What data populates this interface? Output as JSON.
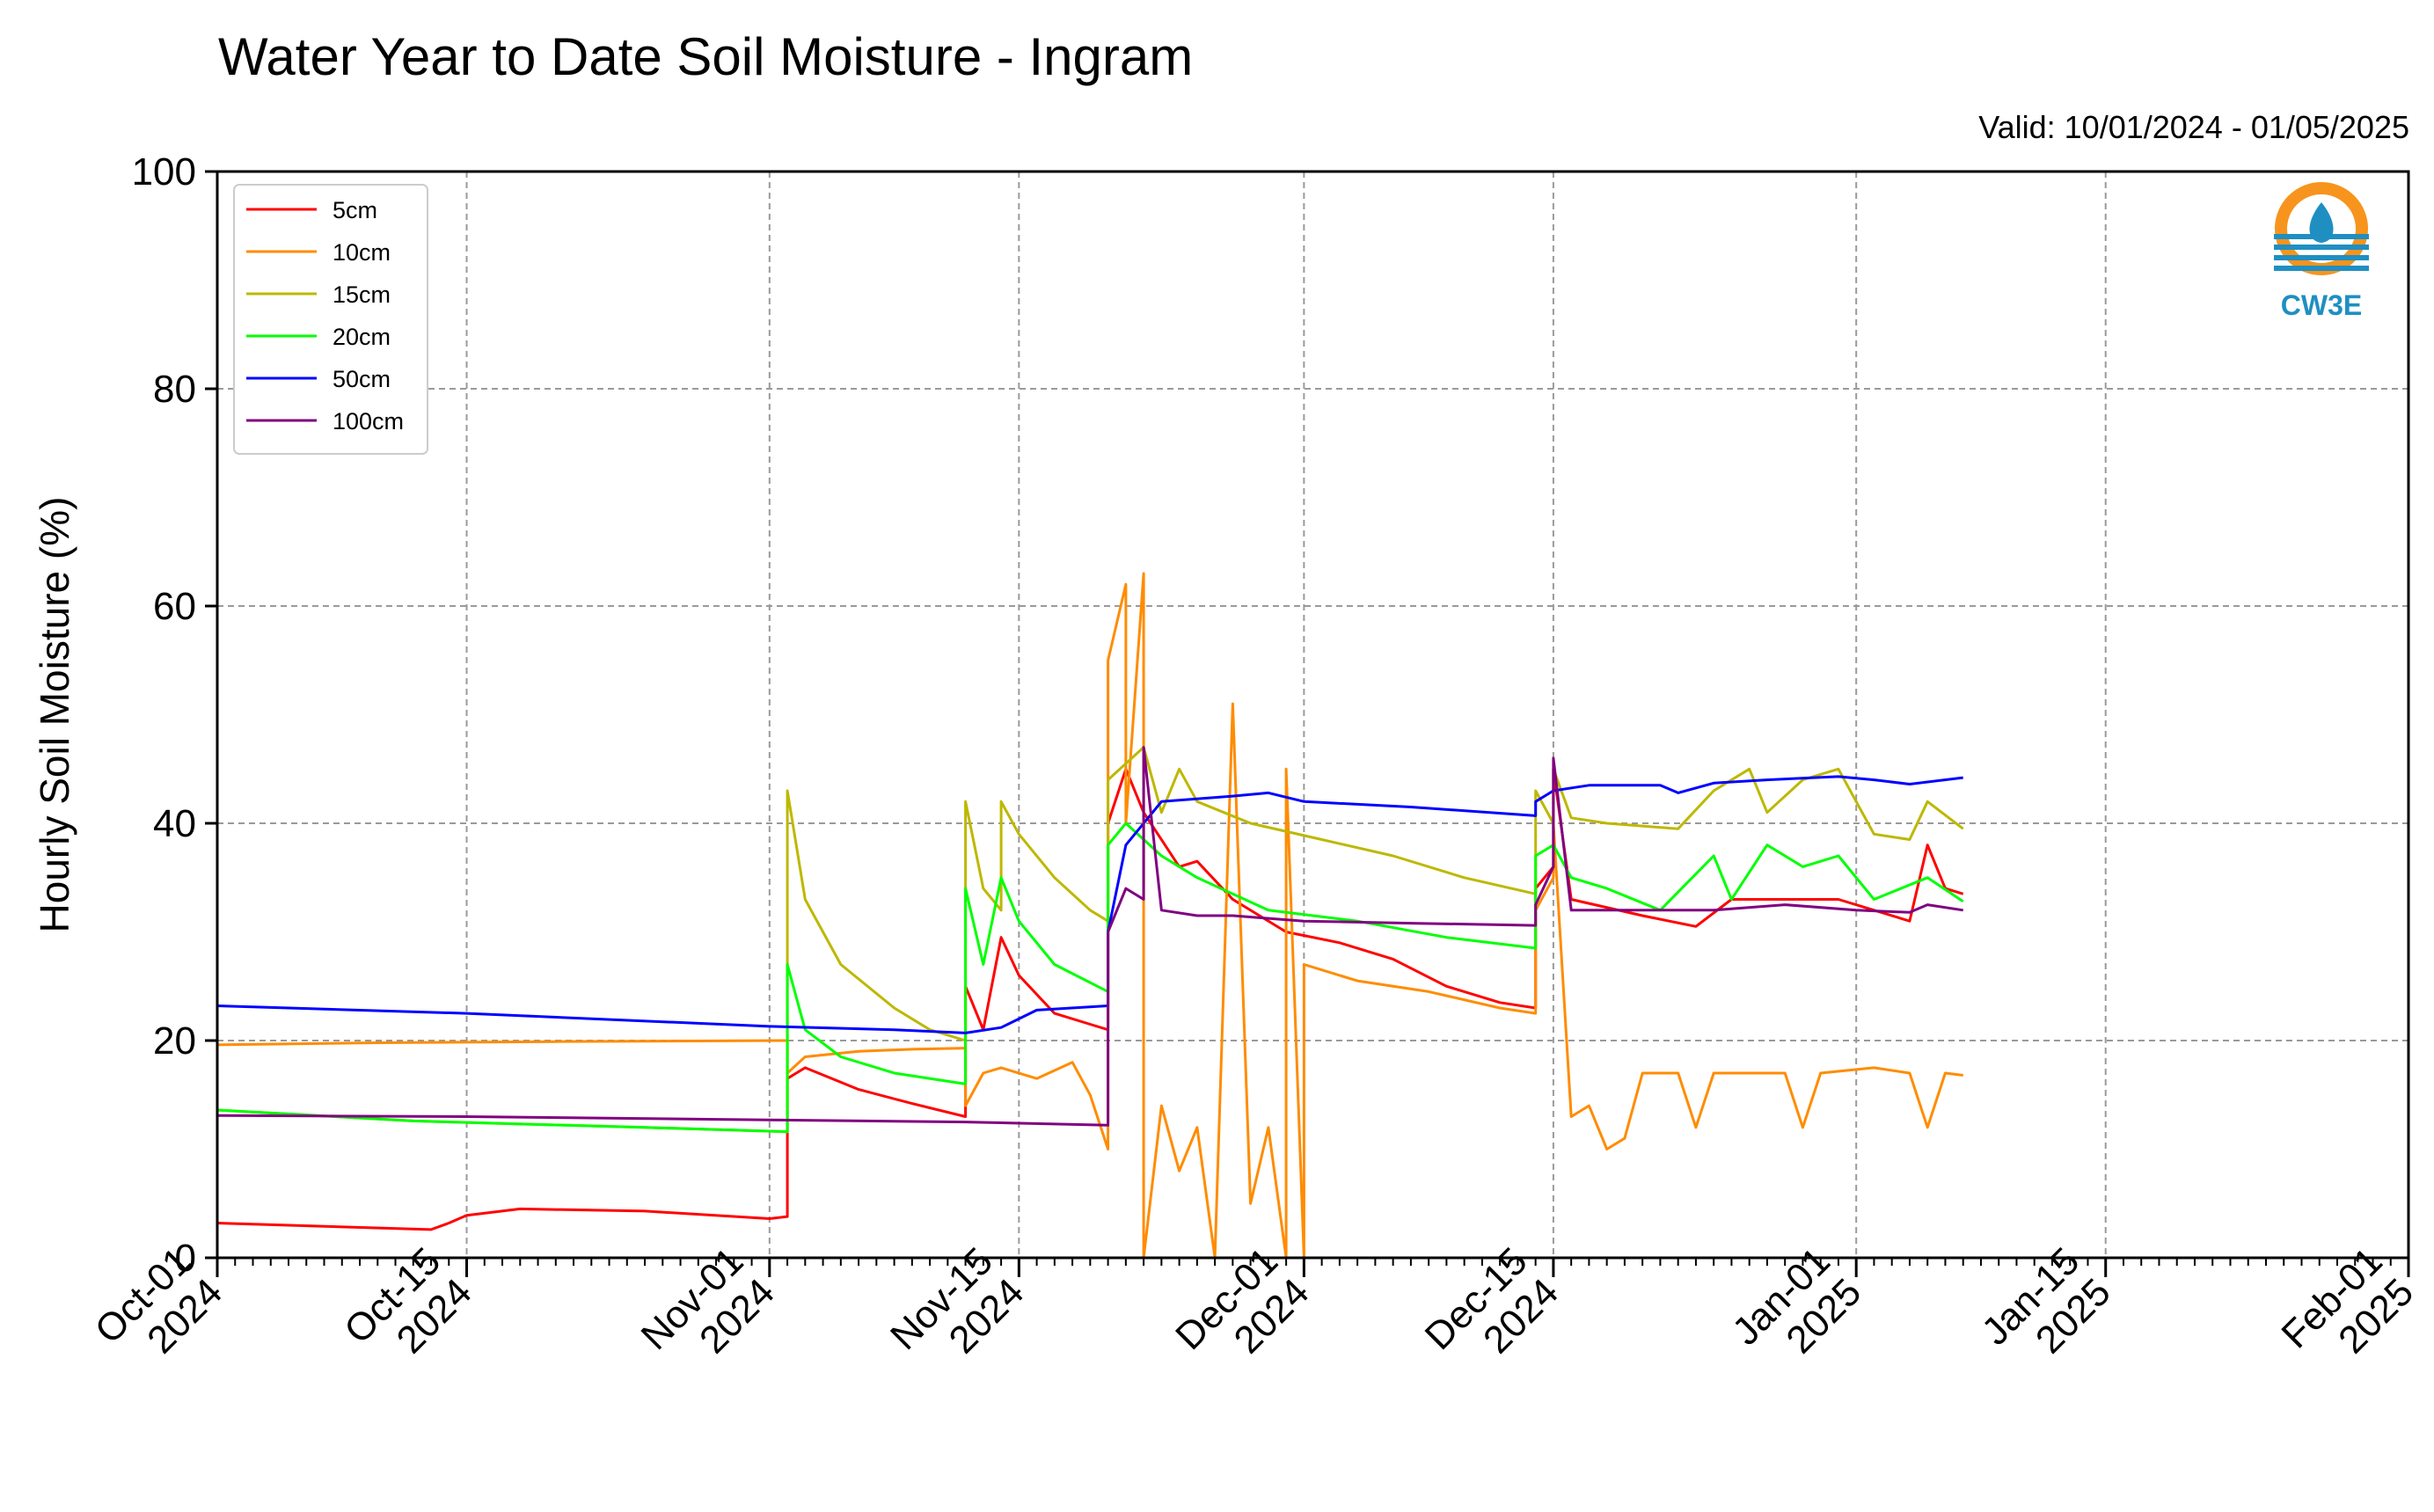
{
  "chart_data": {
    "type": "line",
    "title": "Water Year to Date Soil Moisture - Ingram",
    "subtitle": "Valid: 10/01/2024 - 01/05/2025",
    "ylabel": "Hourly Soil Moisture (%)",
    "xlabel": "",
    "ylim": [
      0,
      100
    ],
    "xlim": [
      "2024-10-01",
      "2025-02-01"
    ],
    "y_ticks": [
      0,
      20,
      40,
      60,
      80,
      100
    ],
    "x_ticks": [
      {
        "date": "2024-10-01",
        "line1": "Oct-01",
        "line2": "2024"
      },
      {
        "date": "2024-10-15",
        "line1": "Oct-15",
        "line2": "2024"
      },
      {
        "date": "2024-11-01",
        "line1": "Nov-01",
        "line2": "2024"
      },
      {
        "date": "2024-11-15",
        "line1": "Nov-15",
        "line2": "2024"
      },
      {
        "date": "2024-12-01",
        "line1": "Dec-01",
        "line2": "2024"
      },
      {
        "date": "2024-12-15",
        "line1": "Dec-15",
        "line2": "2024"
      },
      {
        "date": "2025-01-01",
        "line1": "Jan-01",
        "line2": "2025"
      },
      {
        "date": "2025-01-15",
        "line1": "Jan-15",
        "line2": "2025"
      },
      {
        "date": "2025-02-01",
        "line1": "Feb-01",
        "line2": "2025"
      }
    ],
    "grid": true,
    "legend_position": "top-left",
    "series": [
      {
        "name": "5cm",
        "color": "#ff0000",
        "points": [
          [
            "2024-10-01",
            3.2
          ],
          [
            "2024-10-13",
            2.6
          ],
          [
            "2024-10-14",
            3.2
          ],
          [
            "2024-10-15",
            3.9
          ],
          [
            "2024-10-18",
            4.5
          ],
          [
            "2024-10-25",
            4.3
          ],
          [
            "2024-11-01",
            3.6
          ],
          [
            "2024-11-02",
            3.8
          ],
          [
            "2024-11-02",
            16.5
          ],
          [
            "2024-11-03",
            17.5
          ],
          [
            "2024-11-06",
            15.5
          ],
          [
            "2024-11-09",
            14.2
          ],
          [
            "2024-11-12",
            13.0
          ],
          [
            "2024-11-12",
            25.0
          ],
          [
            "2024-11-13",
            21.0
          ],
          [
            "2024-11-14",
            29.5
          ],
          [
            "2024-11-15",
            26.0
          ],
          [
            "2024-11-17",
            22.5
          ],
          [
            "2024-11-19",
            21.5
          ],
          [
            "2024-11-20",
            21.0
          ],
          [
            "2024-11-20",
            40.0
          ],
          [
            "2024-11-21",
            45.0
          ],
          [
            "2024-11-22",
            41.0
          ],
          [
            "2024-11-24",
            36.0
          ],
          [
            "2024-11-25",
            36.5
          ],
          [
            "2024-11-27",
            33.0
          ],
          [
            "2024-11-30",
            30.0
          ],
          [
            "2024-12-03",
            29.0
          ],
          [
            "2024-12-06",
            27.5
          ],
          [
            "2024-12-09",
            25.0
          ],
          [
            "2024-12-12",
            23.5
          ],
          [
            "2024-12-14",
            23.0
          ],
          [
            "2024-12-14",
            34.0
          ],
          [
            "2024-12-15",
            36.0
          ],
          [
            "2024-12-15",
            45.0
          ],
          [
            "2024-12-16",
            33.0
          ],
          [
            "2024-12-20",
            31.5
          ],
          [
            "2024-12-23",
            30.5
          ],
          [
            "2024-12-25",
            33.0
          ],
          [
            "2024-12-28",
            33.0
          ],
          [
            "2024-12-31",
            33.0
          ],
          [
            "2025-01-02",
            32.0
          ],
          [
            "2025-01-04",
            31.0
          ],
          [
            "2025-01-05",
            38.0
          ],
          [
            "2025-01-06",
            34.0
          ],
          [
            "2025-01-07",
            33.5
          ]
        ]
      },
      {
        "name": "10cm",
        "color": "#ff8c00",
        "points": [
          [
            "2024-10-01",
            19.6
          ],
          [
            "2024-10-10",
            19.8
          ],
          [
            "2024-10-20",
            19.9
          ],
          [
            "2024-11-02",
            20.0
          ],
          [
            "2024-11-02",
            17.0
          ],
          [
            "2024-11-03",
            18.5
          ],
          [
            "2024-11-06",
            19.0
          ],
          [
            "2024-11-09",
            19.2
          ],
          [
            "2024-11-12",
            19.3
          ],
          [
            "2024-11-12",
            14.0
          ],
          [
            "2024-11-13",
            17.0
          ],
          [
            "2024-11-14",
            17.5
          ],
          [
            "2024-11-16",
            16.5
          ],
          [
            "2024-11-18",
            18.0
          ],
          [
            "2024-11-19",
            15.0
          ],
          [
            "2024-11-20",
            10.0
          ],
          [
            "2024-11-20",
            55.0
          ],
          [
            "2024-11-21",
            62.0
          ],
          [
            "2024-11-21",
            40.0
          ],
          [
            "2024-11-22",
            63.0
          ],
          [
            "2024-11-22",
            0.0
          ],
          [
            "2024-11-23",
            14.0
          ],
          [
            "2024-11-24",
            8.0
          ],
          [
            "2024-11-25",
            12.0
          ],
          [
            "2024-11-26",
            0.0
          ],
          [
            "2024-11-27",
            51.0
          ],
          [
            "2024-11-28",
            5.0
          ],
          [
            "2024-11-29",
            12.0
          ],
          [
            "2024-11-30",
            0.0
          ],
          [
            "2024-11-30",
            45.0
          ],
          [
            "2024-12-01",
            0.0
          ],
          [
            "2024-12-01",
            27.0
          ],
          [
            "2024-12-04",
            25.5
          ],
          [
            "2024-12-08",
            24.5
          ],
          [
            "2024-12-12",
            23.0
          ],
          [
            "2024-12-14",
            22.5
          ],
          [
            "2024-12-14",
            32.0
          ],
          [
            "2024-12-15",
            35.0
          ],
          [
            "2024-12-15",
            40.0
          ],
          [
            "2024-12-16",
            13.0
          ],
          [
            "2024-12-17",
            14.0
          ],
          [
            "2024-12-18",
            10.0
          ],
          [
            "2024-12-19",
            11.0
          ],
          [
            "2024-12-20",
            17.0
          ],
          [
            "2024-12-22",
            17.0
          ],
          [
            "2024-12-23",
            12.0
          ],
          [
            "2024-12-24",
            17.0
          ],
          [
            "2024-12-28",
            17.0
          ],
          [
            "2024-12-29",
            12.0
          ],
          [
            "2024-12-30",
            17.0
          ],
          [
            "2025-01-02",
            17.5
          ],
          [
            "2025-01-04",
            17.0
          ],
          [
            "2025-01-05",
            12.0
          ],
          [
            "2025-01-06",
            17.0
          ],
          [
            "2025-01-07",
            16.8
          ]
        ]
      },
      {
        "name": "15cm",
        "color": "#bdb800",
        "points": [
          [
            "2024-10-01",
            13.6
          ],
          [
            "2024-10-12",
            12.6
          ],
          [
            "2024-10-25",
            12.0
          ],
          [
            "2024-11-02",
            11.6
          ],
          [
            "2024-11-02",
            43.0
          ],
          [
            "2024-11-03",
            33.0
          ],
          [
            "2024-11-05",
            27.0
          ],
          [
            "2024-11-08",
            23.0
          ],
          [
            "2024-11-10",
            21.0
          ],
          [
            "2024-11-12",
            20.0
          ],
          [
            "2024-11-12",
            42.0
          ],
          [
            "2024-11-13",
            34.0
          ],
          [
            "2024-11-14",
            32.0
          ],
          [
            "2024-11-14",
            42.0
          ],
          [
            "2024-11-15",
            39.0
          ],
          [
            "2024-11-17",
            35.0
          ],
          [
            "2024-11-19",
            32.0
          ],
          [
            "2024-11-20",
            31.0
          ],
          [
            "2024-11-20",
            44.0
          ],
          [
            "2024-11-22",
            47.0
          ],
          [
            "2024-11-23",
            41.0
          ],
          [
            "2024-11-24",
            45.0
          ],
          [
            "2024-11-25",
            42.0
          ],
          [
            "2024-11-28",
            40.0
          ],
          [
            "2024-12-02",
            38.5
          ],
          [
            "2024-12-06",
            37.0
          ],
          [
            "2024-12-10",
            35.0
          ],
          [
            "2024-12-14",
            33.5
          ],
          [
            "2024-12-14",
            43.0
          ],
          [
            "2024-12-15",
            40.0
          ],
          [
            "2024-12-15",
            45.0
          ],
          [
            "2024-12-16",
            40.5
          ],
          [
            "2024-12-18",
            40.0
          ],
          [
            "2024-12-22",
            39.5
          ],
          [
            "2024-12-24",
            43.0
          ],
          [
            "2024-12-26",
            45.0
          ],
          [
            "2024-12-27",
            41.0
          ],
          [
            "2024-12-29",
            44.0
          ],
          [
            "2024-12-31",
            45.0
          ],
          [
            "2025-01-02",
            39.0
          ],
          [
            "2025-01-04",
            38.5
          ],
          [
            "2025-01-05",
            42.0
          ],
          [
            "2025-01-07",
            39.5
          ]
        ]
      },
      {
        "name": "20cm",
        "color": "#00ff00",
        "points": [
          [
            "2024-10-01",
            13.6
          ],
          [
            "2024-10-12",
            12.6
          ],
          [
            "2024-10-25",
            12.0
          ],
          [
            "2024-11-02",
            11.6
          ],
          [
            "2024-11-02",
            27.0
          ],
          [
            "2024-11-03",
            21.0
          ],
          [
            "2024-11-05",
            18.5
          ],
          [
            "2024-11-08",
            17.0
          ],
          [
            "2024-11-12",
            16.0
          ],
          [
            "2024-11-12",
            34.0
          ],
          [
            "2024-11-13",
            27.0
          ],
          [
            "2024-11-14",
            35.0
          ],
          [
            "2024-11-15",
            31.0
          ],
          [
            "2024-11-17",
            27.0
          ],
          [
            "2024-11-20",
            24.5
          ],
          [
            "2024-11-20",
            38.0
          ],
          [
            "2024-11-21",
            40.0
          ],
          [
            "2024-11-23",
            37.0
          ],
          [
            "2024-11-25",
            35.0
          ],
          [
            "2024-11-29",
            32.0
          ],
          [
            "2024-12-04",
            31.0
          ],
          [
            "2024-12-09",
            29.5
          ],
          [
            "2024-12-14",
            28.5
          ],
          [
            "2024-12-14",
            37.0
          ],
          [
            "2024-12-15",
            38.0
          ],
          [
            "2024-12-16",
            35.0
          ],
          [
            "2024-12-18",
            34.0
          ],
          [
            "2024-12-21",
            32.0
          ],
          [
            "2024-12-24",
            37.0
          ],
          [
            "2024-12-25",
            33.0
          ],
          [
            "2024-12-27",
            38.0
          ],
          [
            "2024-12-29",
            36.0
          ],
          [
            "2024-12-31",
            37.0
          ],
          [
            "2025-01-02",
            33.0
          ],
          [
            "2025-01-05",
            35.0
          ],
          [
            "2025-01-07",
            32.8
          ]
        ]
      },
      {
        "name": "50cm",
        "color": "#0000ff",
        "points": [
          [
            "2024-10-01",
            23.2
          ],
          [
            "2024-10-15",
            22.5
          ],
          [
            "2024-11-01",
            21.3
          ],
          [
            "2024-11-08",
            21.0
          ],
          [
            "2024-11-12",
            20.7
          ],
          [
            "2024-11-14",
            21.2
          ],
          [
            "2024-11-16",
            22.8
          ],
          [
            "2024-11-20",
            23.2
          ],
          [
            "2024-11-20",
            30.0
          ],
          [
            "2024-11-21",
            38.0
          ],
          [
            "2024-11-23",
            42.0
          ],
          [
            "2024-11-27",
            42.5
          ],
          [
            "2024-11-29",
            42.8
          ],
          [
            "2024-12-01",
            42.0
          ],
          [
            "2024-12-07",
            41.5
          ],
          [
            "2024-12-14",
            40.7
          ],
          [
            "2024-12-14",
            42.0
          ],
          [
            "2024-12-15",
            43.0
          ],
          [
            "2024-12-17",
            43.5
          ],
          [
            "2024-12-21",
            43.5
          ],
          [
            "2024-12-22",
            42.8
          ],
          [
            "2024-12-24",
            43.7
          ],
          [
            "2024-12-27",
            44.0
          ],
          [
            "2024-12-31",
            44.3
          ],
          [
            "2025-01-02",
            44.0
          ],
          [
            "2025-01-04",
            43.6
          ],
          [
            "2025-01-07",
            44.2
          ]
        ]
      },
      {
        "name": "100cm",
        "color": "#800080",
        "points": [
          [
            "2024-10-01",
            13.1
          ],
          [
            "2024-10-15",
            13.0
          ],
          [
            "2024-11-01",
            12.7
          ],
          [
            "2024-11-12",
            12.5
          ],
          [
            "2024-11-20",
            12.2
          ],
          [
            "2024-11-20",
            30.0
          ],
          [
            "2024-11-21",
            34.0
          ],
          [
            "2024-11-22",
            33.0
          ],
          [
            "2024-11-22",
            47.0
          ],
          [
            "2024-11-23",
            32.0
          ],
          [
            "2024-11-25",
            31.5
          ],
          [
            "2024-11-27",
            31.5
          ],
          [
            "2024-12-01",
            31.0
          ],
          [
            "2024-12-07",
            30.8
          ],
          [
            "2024-12-14",
            30.6
          ],
          [
            "2024-12-14",
            32.5
          ],
          [
            "2024-12-15",
            36.0
          ],
          [
            "2024-12-15",
            46.0
          ],
          [
            "2024-12-16",
            32.0
          ],
          [
            "2024-12-20",
            32.0
          ],
          [
            "2024-12-24",
            32.0
          ],
          [
            "2024-12-28",
            32.5
          ],
          [
            "2025-01-01",
            32.0
          ],
          [
            "2025-01-04",
            31.8
          ],
          [
            "2025-01-05",
            32.5
          ],
          [
            "2025-01-07",
            32.0
          ]
        ]
      }
    ]
  },
  "logo": {
    "text": "CW3E",
    "ring_color": "#f7941d",
    "water_color": "#1f8fc2"
  }
}
